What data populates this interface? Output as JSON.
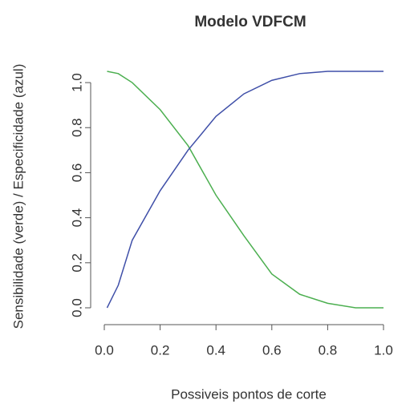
{
  "chart_data": {
    "type": "line",
    "title": "Modelo VDFCM",
    "xlabel": "Possiveis pontos de corte",
    "ylabel": "Sensibilidade (verde) / Especificidade (azul)",
    "x": [
      0.01,
      0.05,
      0.1,
      0.2,
      0.3,
      0.4,
      0.5,
      0.6,
      0.7,
      0.8,
      0.9,
      1.0
    ],
    "series": [
      {
        "name": "Sensibilidade",
        "color": "#4caf50",
        "values": [
          1.05,
          1.04,
          1.0,
          0.88,
          0.72,
          0.5,
          0.32,
          0.15,
          0.06,
          0.02,
          0.0,
          0.0
        ]
      },
      {
        "name": "Especificidade",
        "color": "#3f4fa8",
        "values": [
          0.0,
          0.1,
          0.3,
          0.52,
          0.7,
          0.85,
          0.95,
          1.01,
          1.04,
          1.05,
          1.05,
          1.05
        ]
      }
    ],
    "xlim": [
      0,
      1
    ],
    "ylim": [
      0,
      1.05
    ],
    "xticks": [
      {
        "value": 0,
        "label": "0.0"
      },
      0.2,
      0.4,
      0.6,
      0.8,
      {
        "value": 1,
        "label": "1.0"
      }
    ],
    "yticks": [
      {
        "value": 0,
        "label": "0.0"
      },
      0.2,
      0.4,
      0.6,
      0.8,
      {
        "value": 1,
        "label": "1.0"
      }
    ]
  }
}
